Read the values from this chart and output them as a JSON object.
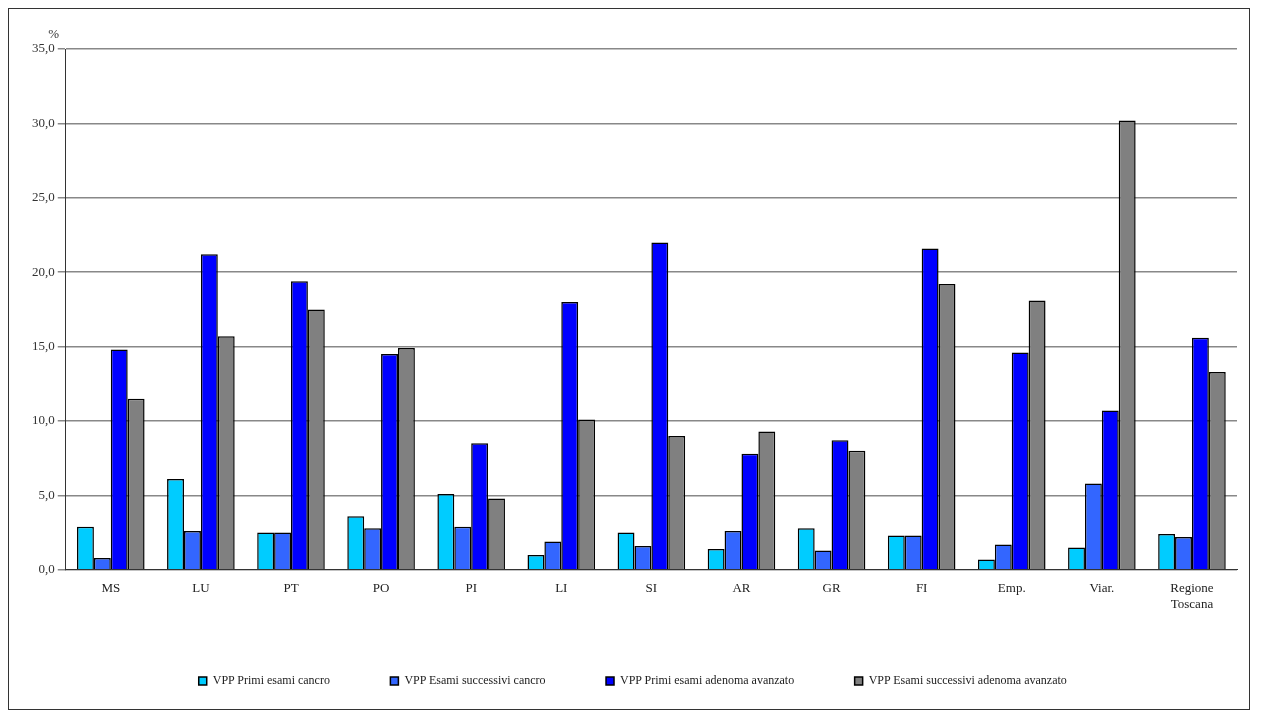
{
  "chart_data": {
    "type": "bar",
    "ylabel": "%",
    "categories": [
      "MS",
      "LU",
      "PT",
      "PO",
      "PI",
      "LI",
      "SI",
      "AR",
      "GR",
      "FI",
      "Emp.",
      "Viar.",
      "Regione Toscana"
    ],
    "series": [
      {
        "name": "VPP Primi esami cancro",
        "color": "#00ccff",
        "values": [
          2.9,
          6.1,
          2.5,
          3.6,
          5.1,
          1.0,
          2.5,
          1.4,
          2.8,
          2.3,
          0.7,
          1.5,
          2.4
        ]
      },
      {
        "name": "VPP Esami successivi cancro",
        "color": "#3366ff",
        "values": [
          0.8,
          2.6,
          2.5,
          2.8,
          2.9,
          1.9,
          1.6,
          2.6,
          1.3,
          2.3,
          1.7,
          5.8,
          2.2
        ]
      },
      {
        "name": "VPP Primi esami adenoma avanzato",
        "color": "#0000ff",
        "values": [
          14.8,
          21.2,
          19.4,
          14.5,
          8.5,
          18.0,
          22.0,
          7.8,
          8.7,
          21.6,
          14.6,
          10.7,
          15.6
        ]
      },
      {
        "name": "VPP Esami successivi adenoma avanzato",
        "color": "#808080",
        "values": [
          11.5,
          15.7,
          17.5,
          14.9,
          4.8,
          10.1,
          9.0,
          9.3,
          8.0,
          19.2,
          18.1,
          30.2,
          13.3
        ]
      }
    ],
    "ylim": [
      0,
      35
    ],
    "yticks": [
      {
        "value": 0,
        "label": "0,0"
      },
      {
        "value": 5,
        "label": "5,0"
      },
      {
        "value": 10,
        "label": "10,0"
      },
      {
        "value": 15,
        "label": "15,0"
      },
      {
        "value": 20,
        "label": "20,0"
      },
      {
        "value": 25,
        "label": "25,0"
      },
      {
        "value": 30,
        "label": "30,0"
      },
      {
        "value": 35,
        "label": "35,0"
      }
    ],
    "grid": "y",
    "legend": "bottom"
  }
}
